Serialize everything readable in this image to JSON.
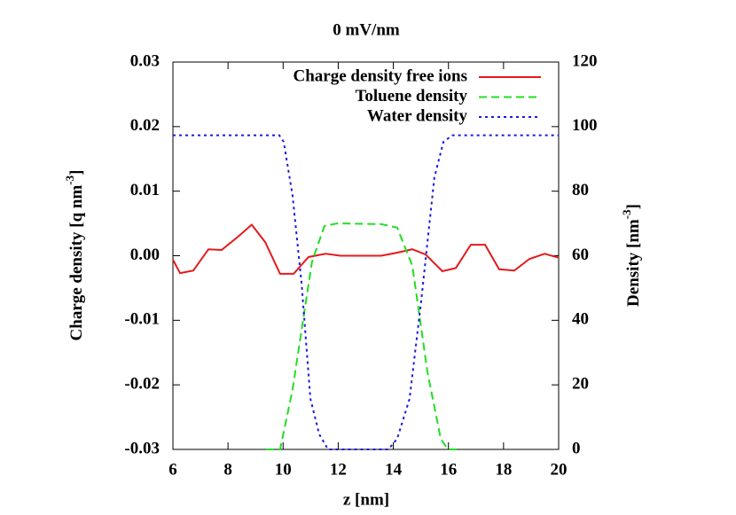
{
  "chart_data": {
    "type": "line",
    "title": "0 mV/nm",
    "x_label": "z [nm]",
    "y_label": {
      "text": "Charge density [q nm",
      "sup": "-3",
      "end": "]"
    },
    "y2_label": {
      "text": "Density [nm",
      "sup": "-3",
      "end": "]"
    },
    "xlim": [
      6,
      20
    ],
    "xticks": [
      6,
      8,
      10,
      12,
      14,
      16,
      18,
      20
    ],
    "ylim": [
      -0.03,
      0.03
    ],
    "yticks": [
      -0.03,
      -0.02,
      -0.01,
      {
        "value": 0,
        "label": "0.00"
      },
      0.01,
      0.02,
      0.03
    ],
    "y2lim": [
      0,
      120
    ],
    "y2ticks": [
      0,
      20,
      40,
      60,
      80,
      100,
      120
    ],
    "grid": false,
    "legend": "top-right",
    "series": [
      {
        "name": "Charge density free ions",
        "color": "#e41a1c",
        "style": "solid",
        "axis": "y",
        "x": [
          6,
          6.26,
          6.74,
          7.29,
          7.77,
          8.35,
          8.86,
          9.35,
          9.89,
          10.38,
          10.92,
          11.54,
          12.08,
          13.56,
          14.05,
          14.69,
          15.17,
          15.78,
          16.27,
          16.81,
          17.33,
          17.84,
          18.39,
          18.94,
          19.49,
          20
        ],
        "values": [
          -0.0006,
          -0.0027,
          -0.0023,
          0.001,
          0.0009,
          0.0029,
          0.0048,
          0.0021,
          -0.0028,
          -0.0028,
          -0.0002,
          0.0003,
          0,
          0,
          0.0004,
          0.001,
          0.0002,
          -0.0024,
          -0.0019,
          0.0017,
          0.0017,
          -0.0021,
          -0.0023,
          -0.0005,
          0.0003,
          -0.0003
        ]
      },
      {
        "name": "Toluene density",
        "color": "#22dd22",
        "style": "dashed",
        "axis": "y2",
        "x": [
          9.38,
          9.89,
          10.34,
          10.73,
          11.05,
          11.5,
          11.95,
          13.56,
          14.14,
          14.69,
          15.24,
          15.72,
          15.98,
          16.3
        ],
        "values": [
          0,
          0,
          18.4,
          40.4,
          58.2,
          69.2,
          70,
          69.8,
          68.7,
          56.9,
          23.9,
          3.3,
          0,
          0
        ]
      },
      {
        "name": "Water density",
        "color": "#1a1adf",
        "style": "dotted",
        "axis": "y2",
        "x": [
          6,
          9.86,
          10.02,
          10.34,
          10.67,
          10.99,
          11.31,
          11.63,
          13.82,
          14.14,
          14.59,
          15.01,
          15.49,
          15.82,
          16.14,
          20
        ],
        "values": [
          97.3,
          97.3,
          95.3,
          78.8,
          51.4,
          15.7,
          4.7,
          0,
          0,
          3.3,
          15.7,
          45.9,
          84.3,
          95.3,
          97.3,
          97.3
        ]
      }
    ]
  }
}
